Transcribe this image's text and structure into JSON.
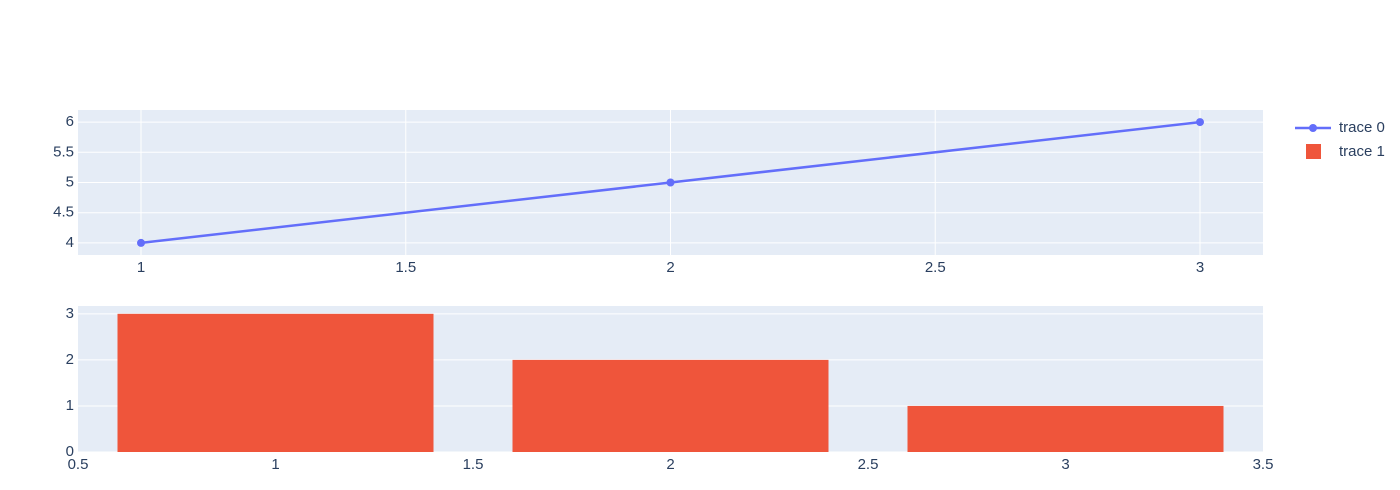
{
  "chart_data": [
    {
      "type": "line",
      "x": [
        1,
        2,
        3
      ],
      "series": [
        {
          "name": "trace 0",
          "color": "#636efa",
          "values": [
            4,
            5,
            6
          ]
        }
      ],
      "xlim": [
        0.881,
        3.119
      ],
      "ylim": [
        3.8,
        6.2
      ],
      "xticks": [
        1,
        1.5,
        2,
        2.5,
        3
      ],
      "yticks": [
        4,
        4.5,
        5,
        5.5,
        6
      ],
      "grid": "both"
    },
    {
      "type": "bar",
      "x": [
        1,
        2,
        3
      ],
      "series": [
        {
          "name": "trace 1",
          "color": "#ef553b",
          "values": [
            3,
            2,
            1
          ]
        }
      ],
      "xlim": [
        0.5,
        3.5
      ],
      "ylim": [
        0,
        3.17
      ],
      "xticks": [
        0.5,
        1,
        1.5,
        2,
        2.5,
        3,
        3.5
      ],
      "yticks": [
        0,
        1,
        2,
        3
      ],
      "grid": "y"
    }
  ]
}
